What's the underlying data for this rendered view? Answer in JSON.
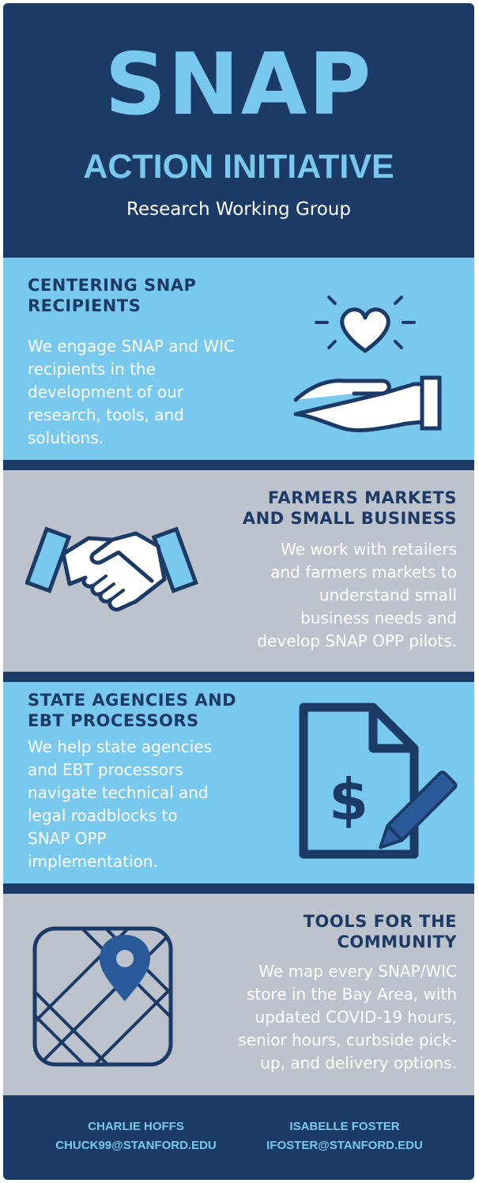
{
  "header": {
    "title": "SNAP",
    "subtitle": "ACTION INITIATIVE",
    "tagline": "Research Working Group"
  },
  "sections": [
    {
      "heading_lines": [
        "CENTERING SNAP",
        "RECIPIENTS"
      ],
      "body_lines": [
        "We engage SNAP and WIC",
        "recipients in the",
        "development of our",
        "research, tools, and",
        "solutions."
      ],
      "icon": "hand-heart-icon"
    },
    {
      "heading_lines": [
        "FARMERS MARKETS",
        "AND SMALL BUSINESS"
      ],
      "body_lines": [
        "We work with retailers",
        "and farmers markets to",
        "understand small",
        "business needs and",
        "develop SNAP OPP pilots."
      ],
      "icon": "handshake-icon"
    },
    {
      "heading_lines": [
        "STATE AGENCIES AND",
        "EBT PROCESSORS"
      ],
      "body_lines": [
        "We help state agencies",
        "and EBT processors",
        "navigate technical and",
        "legal roadblocks to",
        "SNAP OPP",
        "implementation."
      ],
      "icon": "document-dollar-pen-icon"
    },
    {
      "heading_lines": [
        "TOOLS FOR THE",
        "COMMUNITY"
      ],
      "body_lines": [
        "We map every SNAP/WIC",
        "store in the Bay Area, with",
        "updated COVID-19 hours,",
        "senior hours, curbside pick-",
        "up, and delivery options."
      ],
      "icon": "map-pin-icon"
    }
  ],
  "footer": {
    "contacts": [
      {
        "name": "CHARLIE HOFFS",
        "email": "CHUCK99@STANFORD.EDU"
      },
      {
        "name": "ISABELLE FOSTER",
        "email": "IFOSTER@STANFORD.EDU"
      }
    ]
  },
  "colors": {
    "navy": "#1c3a66",
    "light_blue": "#79c9ef",
    "gray": "#bdc3cc",
    "icon_blue": "#2b5a9a"
  }
}
